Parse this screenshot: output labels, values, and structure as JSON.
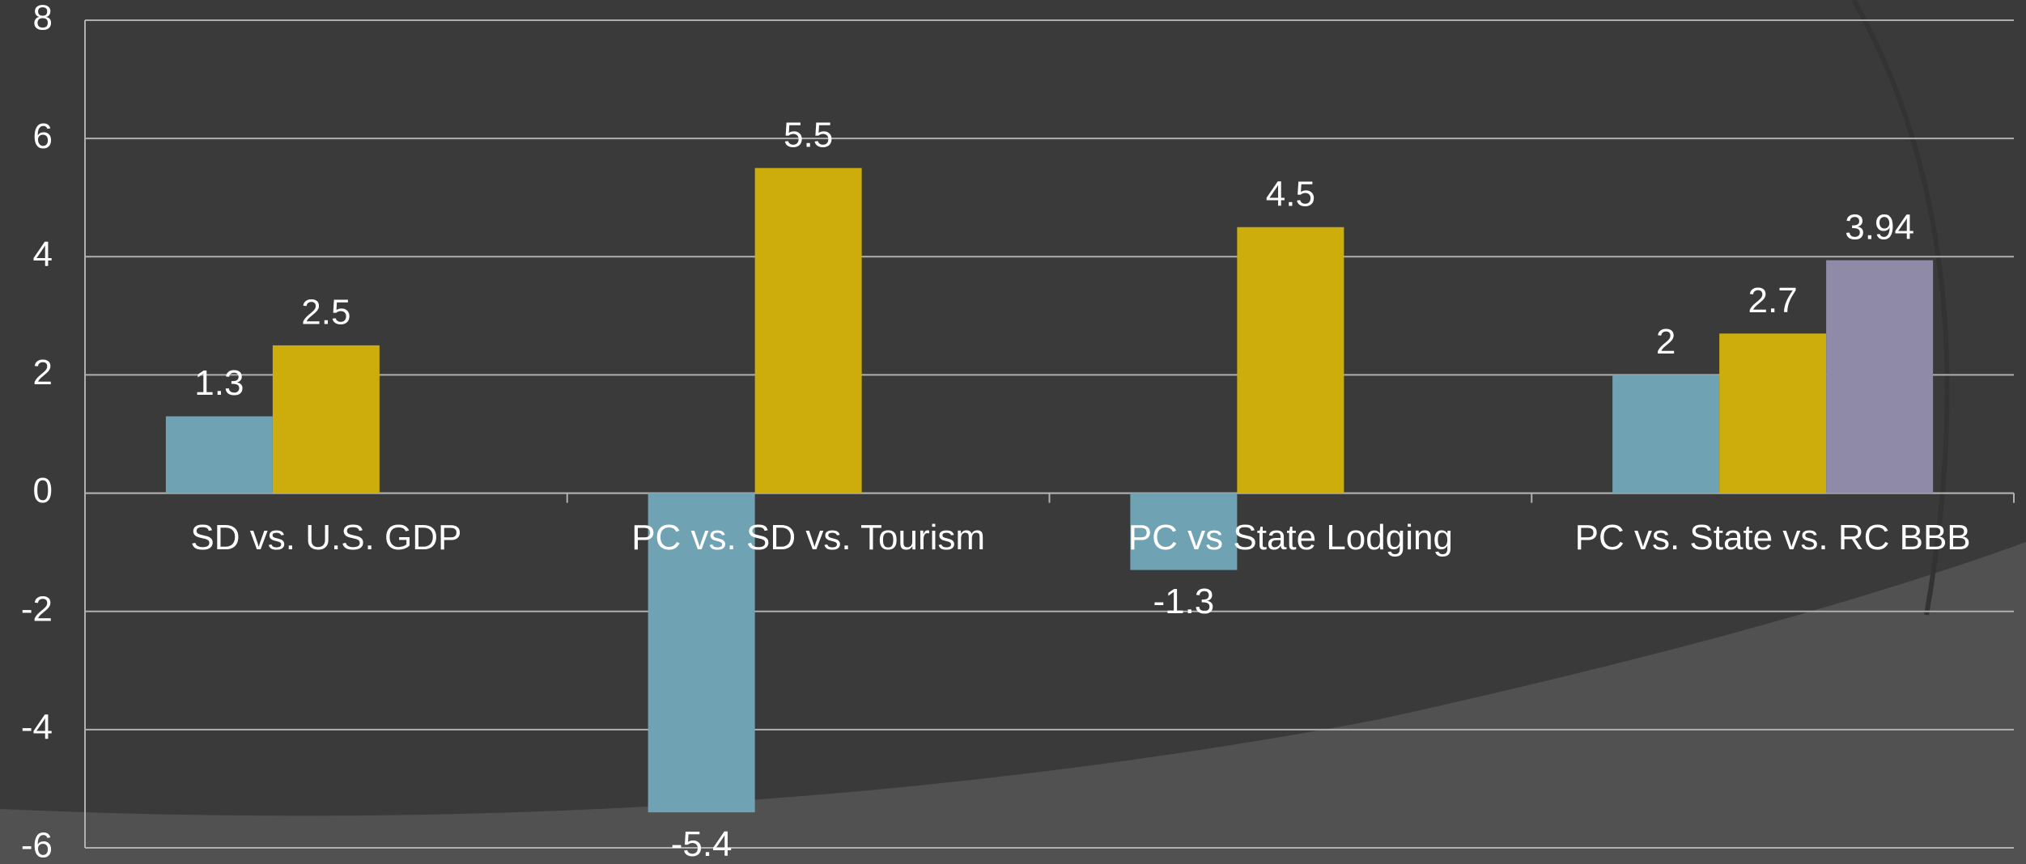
{
  "chart_data": {
    "type": "bar",
    "categories": [
      "SD vs. U.S. GDP",
      "PC vs. SD vs. Tourism",
      "PC vs State Lodging",
      "PC vs. State vs. RC BBB"
    ],
    "series": [
      {
        "color": "#6fa3b3",
        "values": [
          1.3,
          -5.4,
          -1.3,
          2
        ]
      },
      {
        "color": "#ccad0c",
        "values": [
          2.5,
          5.5,
          4.5,
          2.7
        ]
      },
      {
        "color": "#8e8aa8",
        "values": [
          null,
          null,
          null,
          3.94
        ]
      }
    ],
    "ylim": [
      -6,
      8
    ],
    "yticks": [
      -6,
      -4,
      -2,
      0,
      2,
      4,
      6,
      8
    ],
    "grid": true
  }
}
